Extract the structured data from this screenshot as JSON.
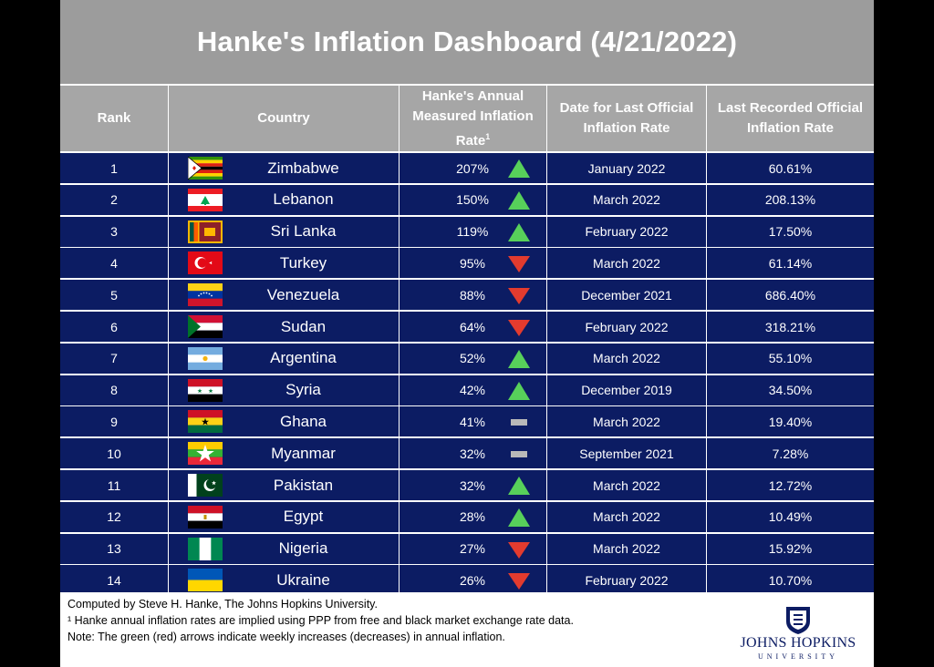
{
  "title": "Hanke's Inflation Dashboard (4/21/2022)",
  "headers": {
    "rank": "Rank",
    "country": "Country",
    "hanke_line1": "Hanke's Annual",
    "hanke_line2": "Measured Inflation",
    "hanke_line3": "Rate",
    "hanke_sup": "1",
    "date_line1": "Date for Last Official",
    "date_line2": "Inflation Rate",
    "official_line1": "Last Recorded Official",
    "official_line2": "Inflation Rate"
  },
  "rows": [
    {
      "rank": "1",
      "country": "Zimbabwe",
      "hanke": "207%",
      "trend": "up",
      "date": "January 2022",
      "official": "60.61%",
      "flag": "zimbabwe"
    },
    {
      "rank": "2",
      "country": "Lebanon",
      "hanke": "150%",
      "trend": "up",
      "date": "March 2022",
      "official": "208.13%",
      "flag": "lebanon"
    },
    {
      "rank": "3",
      "country": "Sri Lanka",
      "hanke": "119%",
      "trend": "up",
      "date": "February 2022",
      "official": "17.50%",
      "flag": "sri-lanka"
    },
    {
      "rank": "4",
      "country": "Turkey",
      "hanke": "95%",
      "trend": "down",
      "date": "March 2022",
      "official": "61.14%",
      "flag": "turkey"
    },
    {
      "rank": "5",
      "country": "Venezuela",
      "hanke": "88%",
      "trend": "down",
      "date": "December 2021",
      "official": "686.40%",
      "flag": "venezuela"
    },
    {
      "rank": "6",
      "country": "Sudan",
      "hanke": "64%",
      "trend": "down",
      "date": "February 2022",
      "official": "318.21%",
      "flag": "sudan"
    },
    {
      "rank": "7",
      "country": "Argentina",
      "hanke": "52%",
      "trend": "up",
      "date": "March 2022",
      "official": "55.10%",
      "flag": "argentina"
    },
    {
      "rank": "8",
      "country": "Syria",
      "hanke": "42%",
      "trend": "up",
      "date": "December 2019",
      "official": "34.50%",
      "flag": "syria"
    },
    {
      "rank": "9",
      "country": "Ghana",
      "hanke": "41%",
      "trend": "flat",
      "date": "March 2022",
      "official": "19.40%",
      "flag": "ghana"
    },
    {
      "rank": "10",
      "country": "Myanmar",
      "hanke": "32%",
      "trend": "flat",
      "date": "September 2021",
      "official": "7.28%",
      "flag": "myanmar"
    },
    {
      "rank": "11",
      "country": "Pakistan",
      "hanke": "32%",
      "trend": "up",
      "date": "March 2022",
      "official": "12.72%",
      "flag": "pakistan"
    },
    {
      "rank": "12",
      "country": "Egypt",
      "hanke": "28%",
      "trend": "up",
      "date": "March 2022",
      "official": "10.49%",
      "flag": "egypt"
    },
    {
      "rank": "13",
      "country": "Nigeria",
      "hanke": "27%",
      "trend": "down",
      "date": "March 2022",
      "official": "15.92%",
      "flag": "nigeria"
    },
    {
      "rank": "14",
      "country": "Ukraine",
      "hanke": "26%",
      "trend": "down",
      "date": "February 2022",
      "official": "10.70%",
      "flag": "ukraine"
    }
  ],
  "footer": {
    "line1": "Computed by Steve H. Hanke, The Johns Hopkins University.",
    "line2": "¹ Hanke annual inflation rates are implied using PPP from free and black market exchange rate data.",
    "line3": "Note: The green (red) arrows indicate weekly increases (decreases) in annual inflation.",
    "logo_name": "JOHNS HOPKINS",
    "logo_sub": "UNIVERSITY"
  },
  "colors": {
    "row_bg": "#0c1c63",
    "header_bg": "#a6a6a6",
    "title_bg": "#9c9c9c",
    "up": "#57d05a",
    "down": "#e33b2e",
    "flat": "#b9b9b9"
  }
}
